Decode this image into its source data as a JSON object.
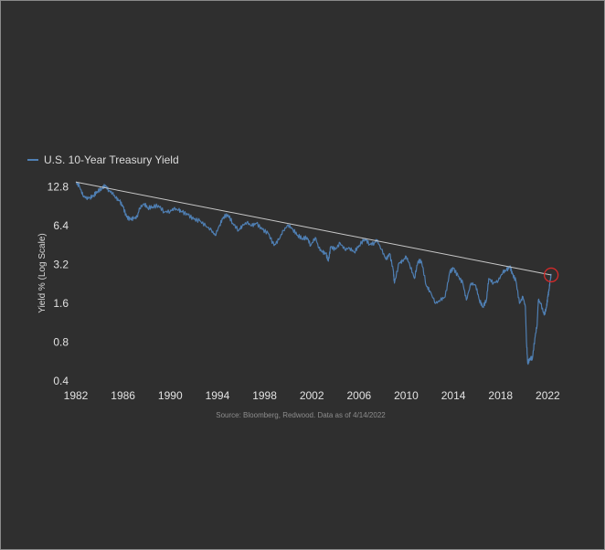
{
  "chart_data": {
    "type": "line",
    "title": "",
    "xlabel": "",
    "ylabel": "Yield % (Log Scale)",
    "y_scale": "log",
    "xlim": [
      1982,
      2022.9
    ],
    "ylim": [
      0.4,
      15.5
    ],
    "x_ticks": [
      "1982",
      "1986",
      "1990",
      "1994",
      "1998",
      "2002",
      "2006",
      "2010",
      "2014",
      "2018",
      "2022"
    ],
    "y_ticks": [
      "12.8",
      "6.4",
      "3.2",
      "1.6",
      "0.8",
      "0.4"
    ],
    "legend": {
      "position": "top-left",
      "entries": [
        "U.S. 10-Year Treasury Yield"
      ]
    },
    "series": [
      {
        "name": "U.S. 10-Year Treasury Yield",
        "color": "#4f7fb3",
        "x": [
          1982.0,
          1982.3,
          1982.6,
          1982.9,
          1983.2,
          1983.5,
          1983.8,
          1984.2,
          1984.5,
          1984.8,
          1985.1,
          1985.4,
          1985.7,
          1986.0,
          1986.3,
          1986.6,
          1986.9,
          1987.2,
          1987.4,
          1987.8,
          1988.1,
          1988.5,
          1989.0,
          1989.5,
          1990.0,
          1990.3,
          1990.7,
          1991.0,
          1991.5,
          1992.0,
          1992.5,
          1993.0,
          1993.5,
          1993.8,
          1994.2,
          1994.5,
          1994.9,
          1995.3,
          1995.8,
          1996.1,
          1996.5,
          1996.9,
          1997.3,
          1997.8,
          1998.3,
          1998.8,
          1999.2,
          1999.6,
          2000.0,
          2000.4,
          2000.8,
          2001.2,
          2001.6,
          2001.9,
          2002.3,
          2002.6,
          2002.9,
          2003.2,
          2003.4,
          2003.6,
          2004.0,
          2004.4,
          2004.8,
          2005.2,
          2005.6,
          2006.0,
          2006.5,
          2006.9,
          2007.3,
          2007.5,
          2007.9,
          2008.3,
          2008.6,
          2008.9,
          2009.0,
          2009.4,
          2009.7,
          2010.0,
          2010.3,
          2010.7,
          2011.0,
          2011.3,
          2011.7,
          2012.0,
          2012.5,
          2012.9,
          2013.3,
          2013.7,
          2014.0,
          2014.4,
          2014.8,
          2015.1,
          2015.5,
          2015.9,
          2016.2,
          2016.5,
          2016.8,
          2017.0,
          2017.4,
          2017.8,
          2018.2,
          2018.5,
          2018.8,
          2019.0,
          2019.3,
          2019.6,
          2019.9,
          2020.1,
          2020.2,
          2020.3,
          2020.5,
          2020.7,
          2020.9,
          2021.1,
          2021.2,
          2021.4,
          2021.7,
          2021.9,
          2022.0,
          2022.1,
          2022.2,
          2022.29
        ],
        "values": [
          14.0,
          13.0,
          11.0,
          10.5,
          10.6,
          11.0,
          11.8,
          12.5,
          13.2,
          12.0,
          11.5,
          10.5,
          10.0,
          9.0,
          7.5,
          7.2,
          7.3,
          7.5,
          8.8,
          9.5,
          8.8,
          9.0,
          9.2,
          8.2,
          8.3,
          8.7,
          8.5,
          8.2,
          7.8,
          7.2,
          7.0,
          6.4,
          5.9,
          5.4,
          6.5,
          7.5,
          7.8,
          6.7,
          5.9,
          6.4,
          6.8,
          6.4,
          6.7,
          6.0,
          5.6,
          4.5,
          5.0,
          5.9,
          6.5,
          6.0,
          5.4,
          5.1,
          5.2,
          4.5,
          5.2,
          4.3,
          4.0,
          3.9,
          3.4,
          4.4,
          4.2,
          4.7,
          4.2,
          4.3,
          4.0,
          4.5,
          5.1,
          4.6,
          4.7,
          5.0,
          4.2,
          3.5,
          3.9,
          2.9,
          2.3,
          3.3,
          3.4,
          3.7,
          3.2,
          2.5,
          3.4,
          3.4,
          2.2,
          2.0,
          1.6,
          1.7,
          1.8,
          2.8,
          3.0,
          2.6,
          2.3,
          1.7,
          2.3,
          2.2,
          1.7,
          1.5,
          1.7,
          2.5,
          2.3,
          2.4,
          2.8,
          2.9,
          3.1,
          2.7,
          2.4,
          1.6,
          1.8,
          1.5,
          0.8,
          0.55,
          0.6,
          0.6,
          0.85,
          1.1,
          1.7,
          1.6,
          1.3,
          1.5,
          1.8,
          2.0,
          2.4,
          2.66
        ]
      }
    ],
    "trendline": {
      "color": "#c8c8c8",
      "x": [
        1982.0,
        2022.29
      ],
      "values": [
        14.0,
        2.66
      ]
    },
    "highlight": {
      "shape": "circle",
      "color": "#d42a2a",
      "x": 2022.29,
      "value": 2.66
    },
    "grid": false
  },
  "source_note": "Source: Bloomberg, Redwood. Data as of 4/14/2022"
}
